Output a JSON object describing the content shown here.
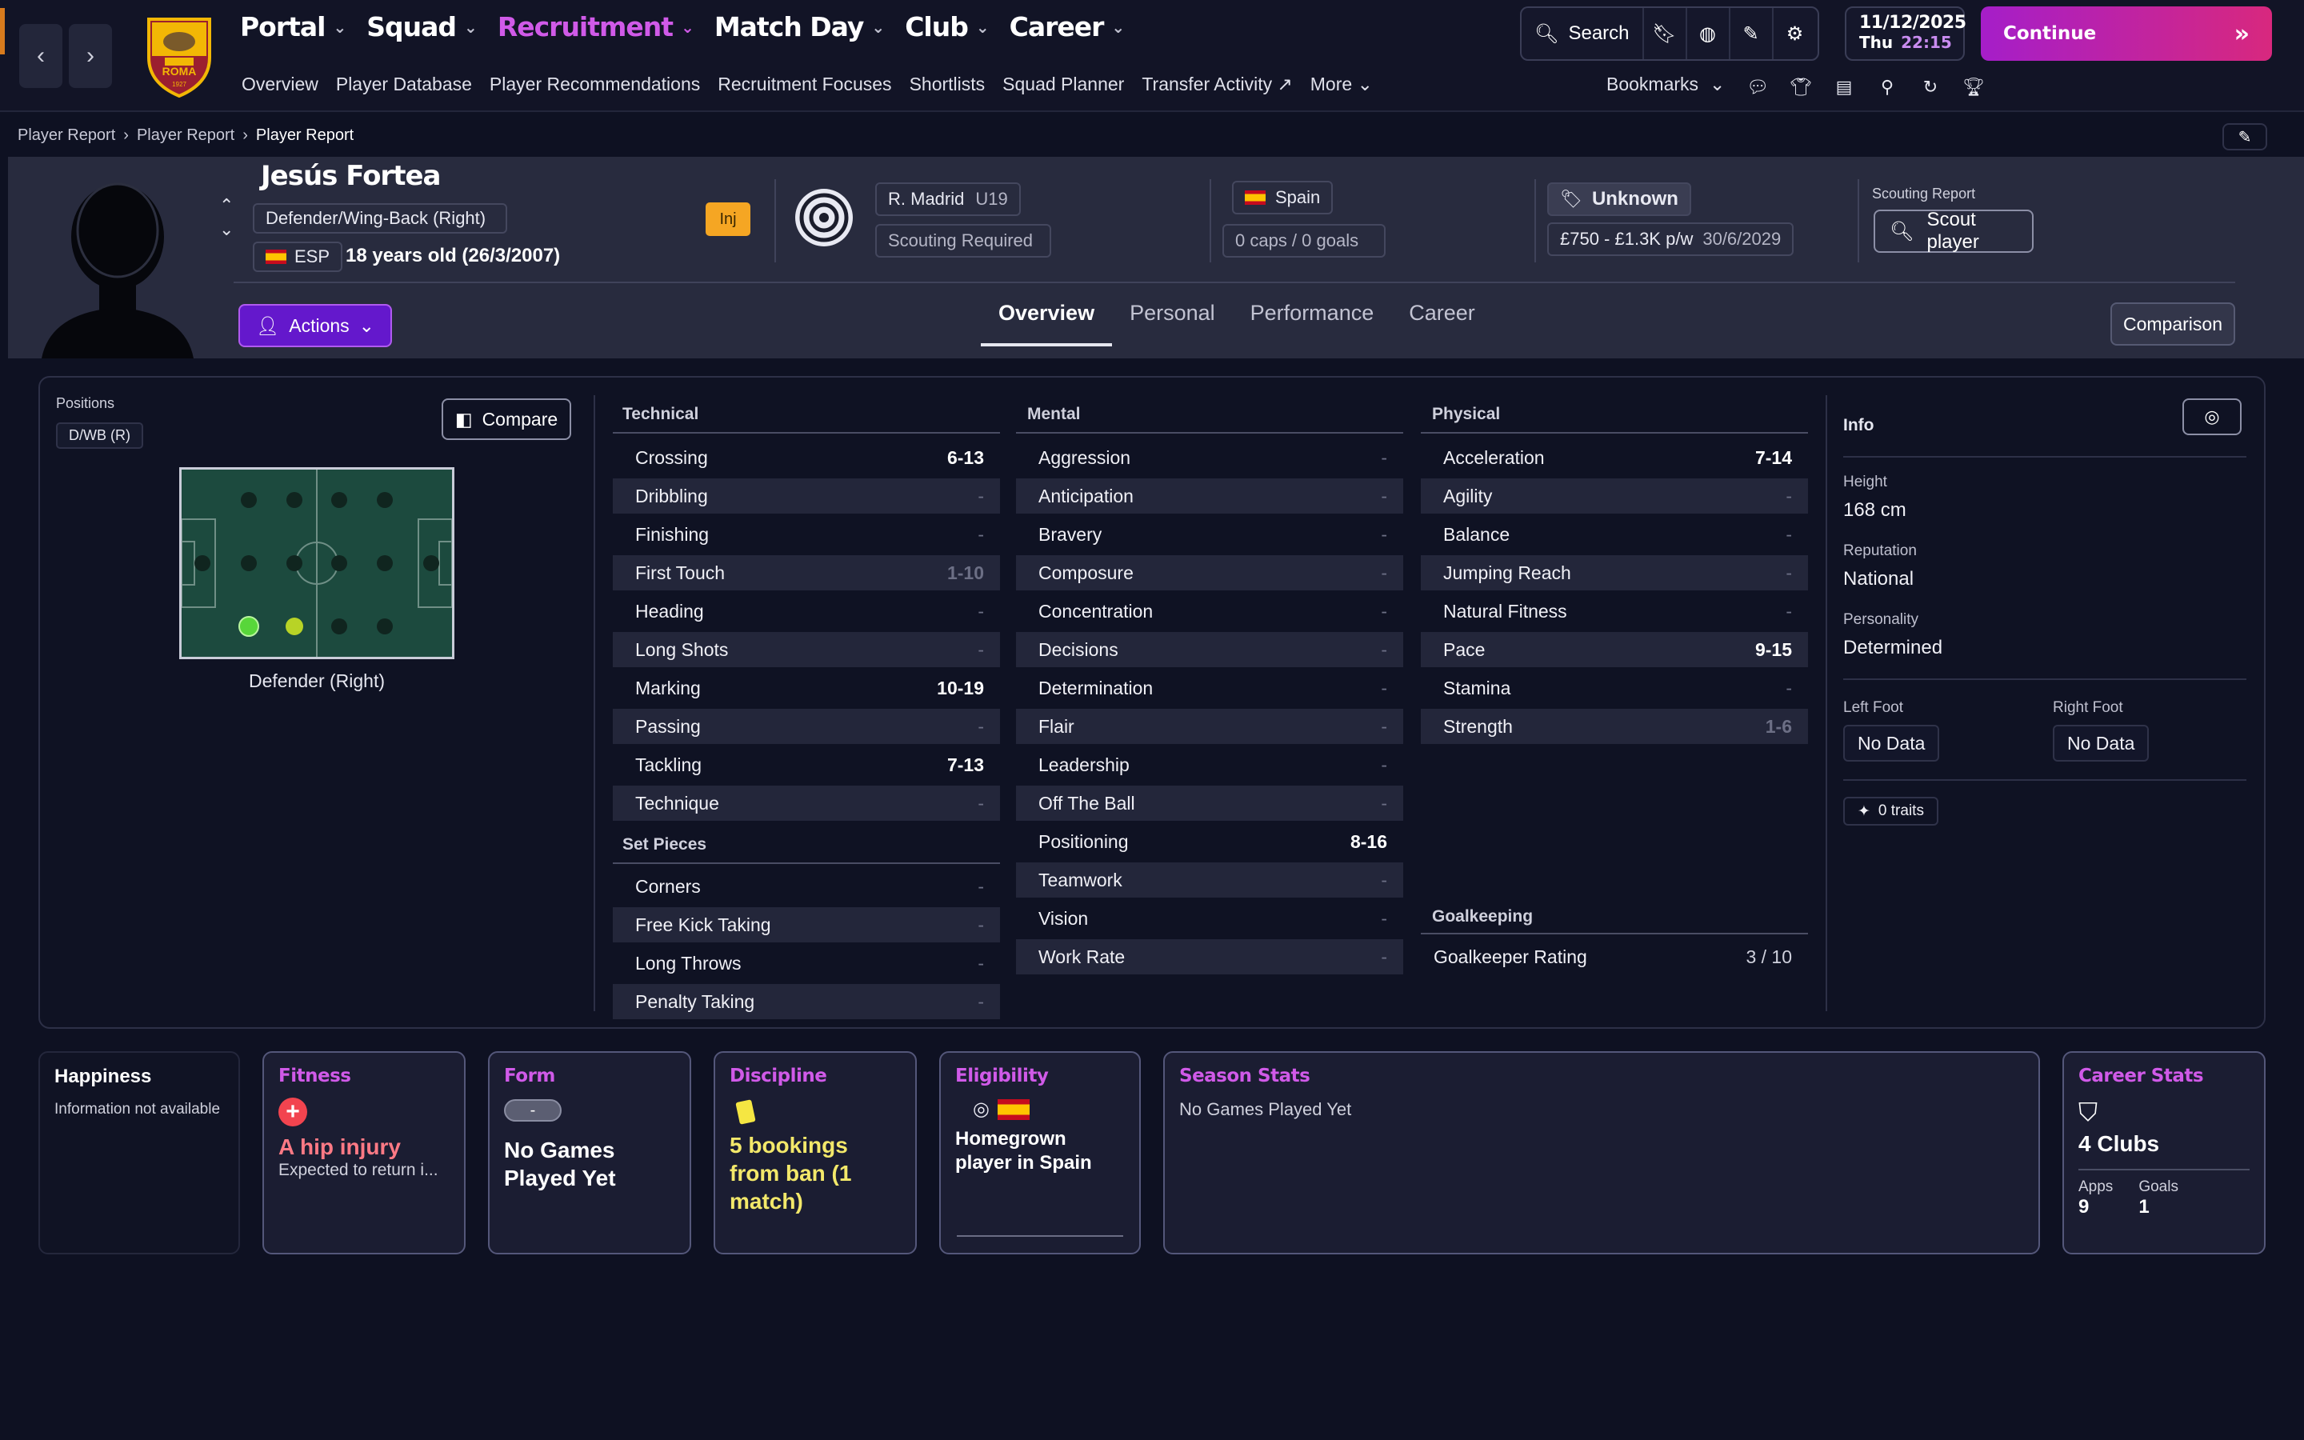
{
  "nav": {
    "main": [
      {
        "label": "Portal",
        "active": false
      },
      {
        "label": "Squad",
        "active": false
      },
      {
        "label": "Recruitment",
        "active": true
      },
      {
        "label": "Match Day",
        "active": false
      },
      {
        "label": "Club",
        "active": false
      },
      {
        "label": "Career",
        "active": false
      }
    ],
    "sub": [
      "Overview",
      "Player Database",
      "Player Recommendations",
      "Recruitment Focuses",
      "Shortlists",
      "Squad Planner",
      "Transfer Activity"
    ],
    "more": "More",
    "search": "Search",
    "date": "11/12/2025",
    "day": "Thu",
    "time": "22:15",
    "continue": "Continue",
    "bookmarks": "Bookmarks"
  },
  "club_logo": {
    "text": "ROMA",
    "year": "1927",
    "color": "#f2b705"
  },
  "breadcrumb": [
    "Player Report",
    "Player Report",
    "Player Report"
  ],
  "player": {
    "name": "Jesús Fortea",
    "position": "Defender/Wing-Back (Right)",
    "nation_code": "ESP",
    "age": "18 years old (26/3/2007)",
    "injury_badge": "Inj",
    "club": "R. Madrid",
    "squad": "U19",
    "scouting_status": "Scouting Required",
    "nation": "Spain",
    "caps": "0 caps / 0 goals",
    "value": "Unknown",
    "wage": "£750 - £1.3K p/w",
    "contract": "30/6/2029",
    "scouting_label": "Scouting Report",
    "scout_button": "Scout player"
  },
  "actions_label": "Actions",
  "tabs": [
    "Overview",
    "Personal",
    "Performance",
    "Career"
  ],
  "active_tab": "Overview",
  "comparison_label": "Comparison",
  "positions": {
    "label": "Positions",
    "tag": "D/WB (R)",
    "compare": "Compare",
    "caption": "Defender (Right)"
  },
  "technical": {
    "title": "Technical",
    "items": [
      {
        "name": "Crossing",
        "value": "6-13"
      },
      {
        "name": "Dribbling",
        "value": "-"
      },
      {
        "name": "Finishing",
        "value": "-"
      },
      {
        "name": "First Touch",
        "value": "1-10"
      },
      {
        "name": "Heading",
        "value": "-"
      },
      {
        "name": "Long Shots",
        "value": "-"
      },
      {
        "name": "Marking",
        "value": "10-19"
      },
      {
        "name": "Passing",
        "value": "-"
      },
      {
        "name": "Tackling",
        "value": "7-13"
      },
      {
        "name": "Technique",
        "value": "-"
      }
    ]
  },
  "set_pieces": {
    "title": "Set Pieces",
    "items": [
      {
        "name": "Corners",
        "value": "-"
      },
      {
        "name": "Free Kick Taking",
        "value": "-"
      },
      {
        "name": "Long Throws",
        "value": "-"
      },
      {
        "name": "Penalty Taking",
        "value": "-"
      }
    ]
  },
  "mental": {
    "title": "Mental",
    "items": [
      {
        "name": "Aggression",
        "value": "-"
      },
      {
        "name": "Anticipation",
        "value": "-"
      },
      {
        "name": "Bravery",
        "value": "-"
      },
      {
        "name": "Composure",
        "value": "-"
      },
      {
        "name": "Concentration",
        "value": "-"
      },
      {
        "name": "Decisions",
        "value": "-"
      },
      {
        "name": "Determination",
        "value": "-"
      },
      {
        "name": "Flair",
        "value": "-"
      },
      {
        "name": "Leadership",
        "value": "-"
      },
      {
        "name": "Off The Ball",
        "value": "-"
      },
      {
        "name": "Positioning",
        "value": "8-16"
      },
      {
        "name": "Teamwork",
        "value": "-"
      },
      {
        "name": "Vision",
        "value": "-"
      },
      {
        "name": "Work Rate",
        "value": "-"
      }
    ]
  },
  "physical": {
    "title": "Physical",
    "items": [
      {
        "name": "Acceleration",
        "value": "7-14"
      },
      {
        "name": "Agility",
        "value": "-"
      },
      {
        "name": "Balance",
        "value": "-"
      },
      {
        "name": "Jumping Reach",
        "value": "-"
      },
      {
        "name": "Natural Fitness",
        "value": "-"
      },
      {
        "name": "Pace",
        "value": "9-15"
      },
      {
        "name": "Stamina",
        "value": "-"
      },
      {
        "name": "Strength",
        "value": "1-6"
      }
    ]
  },
  "goalkeeping": {
    "title": "Goalkeeping",
    "label": "Goalkeeper Rating",
    "value": "3 / 10"
  },
  "info": {
    "title": "Info",
    "height_label": "Height",
    "height": "168 cm",
    "reputation_label": "Reputation",
    "reputation": "National",
    "personality_label": "Personality",
    "personality": "Determined",
    "left_foot_label": "Left Foot",
    "left_foot": "No Data",
    "right_foot_label": "Right Foot",
    "right_foot": "No Data",
    "traits": "0 traits"
  },
  "cards": {
    "happiness": {
      "title": "Happiness",
      "text": "Information not available"
    },
    "fitness": {
      "title": "Fitness",
      "headline": "A hip injury",
      "sub": "Expected to return i..."
    },
    "form": {
      "title": "Form",
      "pill": "-",
      "headline": "No Games Played Yet"
    },
    "discipline": {
      "title": "Discipline",
      "headline": "5 bookings from ban (1 match)"
    },
    "eligibility": {
      "title": "Eligibility",
      "headline": "Homegrown player in Spain"
    },
    "season": {
      "title": "Season Stats",
      "text": "No Games Played Yet"
    },
    "career": {
      "title": "Career Stats",
      "clubs": "4 Clubs",
      "apps_label": "Apps",
      "apps": "9",
      "goals_label": "Goals",
      "goals": "1"
    }
  },
  "colors": {
    "accent": "#d05ae8",
    "injury": "#f5a623",
    "fitness_text": "#ff7a85",
    "discipline_text": "#f3e86a"
  }
}
